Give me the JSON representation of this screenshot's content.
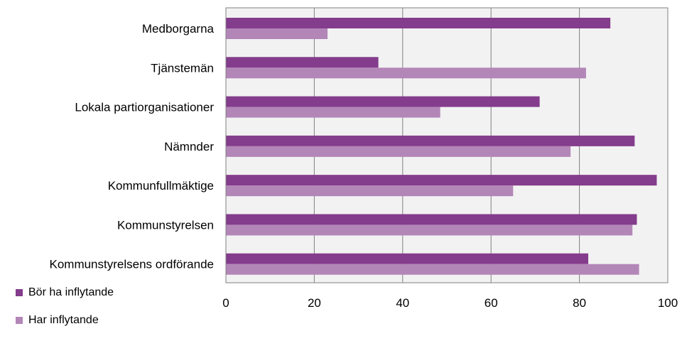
{
  "chart_data": {
    "type": "bar",
    "orientation": "horizontal",
    "title": "",
    "xlabel": "",
    "ylabel": "",
    "xlim": [
      0,
      100
    ],
    "x_ticks": [
      0,
      20,
      40,
      60,
      80,
      100
    ],
    "grid": true,
    "legend_position": "bottom-left",
    "categories": [
      "Medborgarna",
      "Tjänstemän",
      "Lokala partiorganisationer",
      "Nämnder",
      "Kommunfullmäktige",
      "Kommunstyrelsen",
      "Kommunstyrelsens ordförande"
    ],
    "series": [
      {
        "name": "Bör ha inflytande",
        "color": "#843c8c",
        "values": [
          87,
          34.5,
          71,
          92.5,
          97.5,
          93,
          82
        ]
      },
      {
        "name": "Har inflytande",
        "color": "#b386b8",
        "values": [
          23,
          81.5,
          48.5,
          78,
          65,
          92,
          93.5
        ]
      }
    ],
    "plot_background": "#f2f2f2",
    "gridline_color": "#808080"
  }
}
